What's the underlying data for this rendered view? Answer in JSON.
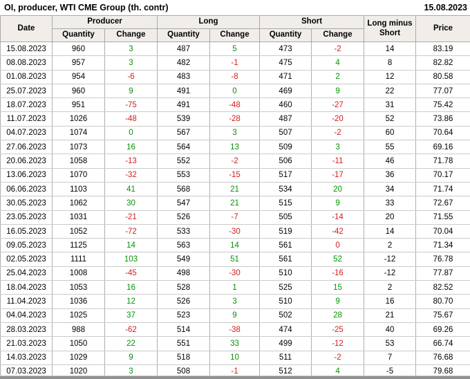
{
  "title": "OI, producer, WTI CME Group (th. contr)",
  "report_date": "15.08.2023",
  "colors": {
    "positive": "#069106",
    "negative": "#d41c1c",
    "header_bg": "#f1eeea"
  },
  "table": {
    "headers": {
      "date": "Date",
      "producer": "Producer",
      "long": "Long",
      "short": "Short",
      "quantity": "Quantity",
      "change": "Change",
      "long_minus_short": "Long minus Short",
      "price": "Price"
    },
    "rows": [
      {
        "date": "15.08.2023",
        "cells": [
          {
            "v": "960"
          },
          {
            "v": "3",
            "c": "g"
          },
          {
            "v": "487"
          },
          {
            "v": "5",
            "c": "g"
          },
          {
            "v": "473"
          },
          {
            "v": "-2",
            "c": "r"
          },
          {
            "v": "14"
          },
          {
            "v": "83.19"
          }
        ]
      },
      {
        "date": "08.08.2023",
        "cells": [
          {
            "v": "957"
          },
          {
            "v": "3",
            "c": "g"
          },
          {
            "v": "482"
          },
          {
            "v": "-1",
            "c": "r"
          },
          {
            "v": "475"
          },
          {
            "v": "4",
            "c": "g"
          },
          {
            "v": "8"
          },
          {
            "v": "82.82"
          }
        ]
      },
      {
        "date": "01.08.2023",
        "cells": [
          {
            "v": "954"
          },
          {
            "v": "-6",
            "c": "r"
          },
          {
            "v": "483"
          },
          {
            "v": "-8",
            "c": "r"
          },
          {
            "v": "471"
          },
          {
            "v": "2",
            "c": "g"
          },
          {
            "v": "12"
          },
          {
            "v": "80.58"
          }
        ]
      },
      {
        "date": "25.07.2023",
        "cells": [
          {
            "v": "960"
          },
          {
            "v": "9",
            "c": "g"
          },
          {
            "v": "491"
          },
          {
            "v": "0",
            "c": "g"
          },
          {
            "v": "469"
          },
          {
            "v": "9",
            "c": "g"
          },
          {
            "v": "22"
          },
          {
            "v": "77.07"
          }
        ]
      },
      {
        "date": "18.07.2023",
        "cells": [
          {
            "v": "951"
          },
          {
            "v": "-75",
            "c": "r"
          },
          {
            "v": "491"
          },
          {
            "v": "-48",
            "c": "r"
          },
          {
            "v": "460"
          },
          {
            "v": "-27",
            "c": "r"
          },
          {
            "v": "31"
          },
          {
            "v": "75.42"
          }
        ]
      },
      {
        "date": "11.07.2023",
        "cells": [
          {
            "v": "1026"
          },
          {
            "v": "-48",
            "c": "r"
          },
          {
            "v": "539"
          },
          {
            "v": "-28",
            "c": "r"
          },
          {
            "v": "487"
          },
          {
            "v": "-20",
            "c": "r"
          },
          {
            "v": "52"
          },
          {
            "v": "73.86"
          }
        ]
      },
      {
        "date": "04.07.2023",
        "cells": [
          {
            "v": "1074"
          },
          {
            "v": "0",
            "c": "g"
          },
          {
            "v": "567"
          },
          {
            "v": "3",
            "c": "g"
          },
          {
            "v": "507"
          },
          {
            "v": "-2",
            "c": "r"
          },
          {
            "v": "60"
          },
          {
            "v": "70.64"
          }
        ]
      },
      {
        "date": "27.06.2023",
        "cells": [
          {
            "v": "1073"
          },
          {
            "v": "16",
            "c": "g"
          },
          {
            "v": "564"
          },
          {
            "v": "13",
            "c": "g"
          },
          {
            "v": "509"
          },
          {
            "v": "3",
            "c": "g"
          },
          {
            "v": "55"
          },
          {
            "v": "69.16"
          }
        ]
      },
      {
        "date": "20.06.2023",
        "cells": [
          {
            "v": "1058"
          },
          {
            "v": "-13",
            "c": "r"
          },
          {
            "v": "552"
          },
          {
            "v": "-2",
            "c": "r"
          },
          {
            "v": "506"
          },
          {
            "v": "-11",
            "c": "r"
          },
          {
            "v": "46"
          },
          {
            "v": "71.78"
          }
        ]
      },
      {
        "date": "13.06.2023",
        "cells": [
          {
            "v": "1070"
          },
          {
            "v": "-32",
            "c": "r"
          },
          {
            "v": "553"
          },
          {
            "v": "-15",
            "c": "r"
          },
          {
            "v": "517"
          },
          {
            "v": "-17",
            "c": "r"
          },
          {
            "v": "36"
          },
          {
            "v": "70.17"
          }
        ]
      },
      {
        "date": "06.06.2023",
        "cells": [
          {
            "v": "1103"
          },
          {
            "v": "41",
            "c": "g"
          },
          {
            "v": "568"
          },
          {
            "v": "21",
            "c": "g"
          },
          {
            "v": "534"
          },
          {
            "v": "20",
            "c": "g"
          },
          {
            "v": "34"
          },
          {
            "v": "71.74"
          }
        ]
      },
      {
        "date": "30.05.2023",
        "cells": [
          {
            "v": "1062"
          },
          {
            "v": "30",
            "c": "g"
          },
          {
            "v": "547"
          },
          {
            "v": "21",
            "c": "g"
          },
          {
            "v": "515"
          },
          {
            "v": "9",
            "c": "g"
          },
          {
            "v": "33"
          },
          {
            "v": "72.67"
          }
        ]
      },
      {
        "date": "23.05.2023",
        "cells": [
          {
            "v": "1031"
          },
          {
            "v": "-21",
            "c": "r"
          },
          {
            "v": "526"
          },
          {
            "v": "-7",
            "c": "r"
          },
          {
            "v": "505"
          },
          {
            "v": "-14",
            "c": "r"
          },
          {
            "v": "20"
          },
          {
            "v": "71.55"
          }
        ]
      },
      {
        "date": "16.05.2023",
        "cells": [
          {
            "v": "1052"
          },
          {
            "v": "-72",
            "c": "r"
          },
          {
            "v": "533"
          },
          {
            "v": "-30",
            "c": "r"
          },
          {
            "v": "519"
          },
          {
            "v": "-42",
            "c": "r"
          },
          {
            "v": "14"
          },
          {
            "v": "70.04"
          }
        ]
      },
      {
        "date": "09.05.2023",
        "cells": [
          {
            "v": "1125"
          },
          {
            "v": "14",
            "c": "g"
          },
          {
            "v": "563"
          },
          {
            "v": "14",
            "c": "g"
          },
          {
            "v": "561"
          },
          {
            "v": "0",
            "c": "r"
          },
          {
            "v": "2"
          },
          {
            "v": "71.34"
          }
        ]
      },
      {
        "date": "02.05.2023",
        "cells": [
          {
            "v": "1111"
          },
          {
            "v": "103",
            "c": "g"
          },
          {
            "v": "549"
          },
          {
            "v": "51",
            "c": "g"
          },
          {
            "v": "561"
          },
          {
            "v": "52",
            "c": "g"
          },
          {
            "v": "-12"
          },
          {
            "v": "76.78"
          }
        ]
      },
      {
        "date": "25.04.2023",
        "cells": [
          {
            "v": "1008"
          },
          {
            "v": "-45",
            "c": "r"
          },
          {
            "v": "498"
          },
          {
            "v": "-30",
            "c": "r"
          },
          {
            "v": "510"
          },
          {
            "v": "-16",
            "c": "r"
          },
          {
            "v": "-12"
          },
          {
            "v": "77.87"
          }
        ]
      },
      {
        "date": "18.04.2023",
        "cells": [
          {
            "v": "1053"
          },
          {
            "v": "16",
            "c": "g"
          },
          {
            "v": "528"
          },
          {
            "v": "1",
            "c": "g"
          },
          {
            "v": "525"
          },
          {
            "v": "15",
            "c": "g"
          },
          {
            "v": "2"
          },
          {
            "v": "82.52"
          }
        ]
      },
      {
        "date": "11.04.2023",
        "cells": [
          {
            "v": "1036"
          },
          {
            "v": "12",
            "c": "g"
          },
          {
            "v": "526"
          },
          {
            "v": "3",
            "c": "g"
          },
          {
            "v": "510"
          },
          {
            "v": "9",
            "c": "g"
          },
          {
            "v": "16"
          },
          {
            "v": "80.70"
          }
        ]
      },
      {
        "date": "04.04.2023",
        "cells": [
          {
            "v": "1025"
          },
          {
            "v": "37",
            "c": "g"
          },
          {
            "v": "523"
          },
          {
            "v": "9",
            "c": "g"
          },
          {
            "v": "502"
          },
          {
            "v": "28",
            "c": "g"
          },
          {
            "v": "21"
          },
          {
            "v": "75.67"
          }
        ]
      },
      {
        "date": "28.03.2023",
        "cells": [
          {
            "v": "988"
          },
          {
            "v": "-62",
            "c": "r"
          },
          {
            "v": "514"
          },
          {
            "v": "-38",
            "c": "r"
          },
          {
            "v": "474"
          },
          {
            "v": "-25",
            "c": "r"
          },
          {
            "v": "40"
          },
          {
            "v": "69.26"
          }
        ]
      },
      {
        "date": "21.03.2023",
        "cells": [
          {
            "v": "1050"
          },
          {
            "v": "22",
            "c": "g"
          },
          {
            "v": "551"
          },
          {
            "v": "33",
            "c": "g"
          },
          {
            "v": "499"
          },
          {
            "v": "-12",
            "c": "r"
          },
          {
            "v": "53"
          },
          {
            "v": "66.74"
          }
        ]
      },
      {
        "date": "14.03.2023",
        "cells": [
          {
            "v": "1029"
          },
          {
            "v": "9",
            "c": "g"
          },
          {
            "v": "518"
          },
          {
            "v": "10",
            "c": "g"
          },
          {
            "v": "511"
          },
          {
            "v": "-2",
            "c": "r"
          },
          {
            "v": "7"
          },
          {
            "v": "76.68"
          }
        ]
      },
      {
        "date": "07.03.2023",
        "cells": [
          {
            "v": "1020"
          },
          {
            "v": "3",
            "c": "g"
          },
          {
            "v": "508"
          },
          {
            "v": "-1",
            "c": "r"
          },
          {
            "v": "512"
          },
          {
            "v": "4",
            "c": "g"
          },
          {
            "v": "-5"
          },
          {
            "v": "79.68"
          }
        ]
      }
    ]
  }
}
